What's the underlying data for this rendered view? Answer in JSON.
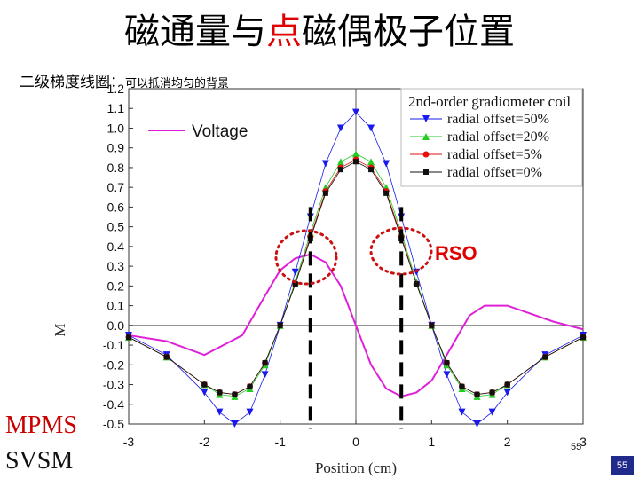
{
  "title_pre": "磁通量与",
  "title_highlight": "点",
  "title_post": "磁偶极子位置",
  "subtitle_main": "二级梯度线圈：",
  "subtitle_note": "可以抵消均匀的背景",
  "voltage_label": "Voltage",
  "rso_label": "RSO",
  "mpms_label": "MPMS",
  "svsm_label": "SVSM",
  "page_number": "55",
  "small_page_number": "55",
  "colors": {
    "voltage": "#e020d8",
    "offset50": "#1a1aee",
    "offset20": "#22cc22",
    "offset5": "#e01010",
    "offset0": "#111111",
    "highlight": "#e00000",
    "page_badge": "#1f2a8a"
  },
  "chart_data": {
    "type": "line",
    "xlabel": "Position (cm)",
    "ylabel": "M",
    "xlim": [
      -3,
      3
    ],
    "ylim": [
      -0.5,
      1.2
    ],
    "xticks": [
      -3,
      -2,
      -1,
      0,
      1,
      2,
      3
    ],
    "yticks": [
      -0.5,
      -0.4,
      -0.3,
      -0.2,
      -0.1,
      0.0,
      0.1,
      0.2,
      0.3,
      0.4,
      0.5,
      0.6,
      0.7,
      0.8,
      0.9,
      1.0,
      1.1,
      1.2
    ],
    "grid": false,
    "legend_title": "2nd-order gradiometer coil",
    "legend_position": "top-right",
    "x": [
      -3.0,
      -2.5,
      -2.0,
      -1.8,
      -1.6,
      -1.4,
      -1.2,
      -1.0,
      -0.8,
      -0.6,
      -0.4,
      -0.2,
      0.0,
      0.2,
      0.4,
      0.6,
      0.8,
      1.0,
      1.2,
      1.4,
      1.6,
      1.8,
      2.0,
      2.5,
      3.0
    ],
    "series": [
      {
        "name": "radial offset=50%",
        "marker": "triangle-down",
        "values": [
          -0.05,
          -0.15,
          -0.34,
          -0.44,
          -0.5,
          -0.44,
          -0.25,
          0.0,
          0.27,
          0.55,
          0.82,
          1.0,
          1.08,
          1.0,
          0.82,
          0.55,
          0.27,
          0.0,
          -0.25,
          -0.44,
          -0.5,
          -0.44,
          -0.34,
          -0.15,
          -0.05
        ]
      },
      {
        "name": "radial offset=20%",
        "marker": "triangle-up",
        "values": [
          -0.06,
          -0.16,
          -0.3,
          -0.35,
          -0.36,
          -0.32,
          -0.2,
          0.0,
          0.22,
          0.47,
          0.7,
          0.83,
          0.87,
          0.83,
          0.7,
          0.47,
          0.22,
          0.0,
          -0.2,
          -0.32,
          -0.36,
          -0.35,
          -0.3,
          -0.16,
          -0.06
        ]
      },
      {
        "name": "radial offset=5%",
        "marker": "circle",
        "values": [
          -0.06,
          -0.16,
          -0.3,
          -0.34,
          -0.35,
          -0.31,
          -0.19,
          0.0,
          0.21,
          0.45,
          0.68,
          0.8,
          0.84,
          0.8,
          0.68,
          0.45,
          0.21,
          0.0,
          -0.19,
          -0.31,
          -0.35,
          -0.34,
          -0.3,
          -0.16,
          -0.06
        ]
      },
      {
        "name": "radial offset=0%",
        "marker": "square",
        "values": [
          -0.06,
          -0.16,
          -0.3,
          -0.34,
          -0.35,
          -0.31,
          -0.19,
          0.0,
          0.21,
          0.44,
          0.67,
          0.79,
          0.83,
          0.79,
          0.67,
          0.44,
          0.21,
          0.0,
          -0.19,
          -0.31,
          -0.35,
          -0.34,
          -0.3,
          -0.16,
          -0.06
        ]
      },
      {
        "name": "Voltage",
        "marker": "none",
        "x": [
          -3.0,
          -2.5,
          -2.0,
          -1.5,
          -1.2,
          -1.0,
          -0.8,
          -0.6,
          -0.4,
          -0.2,
          0.0,
          0.2,
          0.4,
          0.6,
          0.8,
          1.0,
          1.2,
          1.5,
          1.7,
          2.0,
          2.3,
          2.6,
          3.0
        ],
        "values": [
          -0.05,
          -0.08,
          -0.15,
          -0.05,
          0.15,
          0.28,
          0.34,
          0.36,
          0.32,
          0.2,
          0.0,
          -0.2,
          -0.32,
          -0.36,
          -0.34,
          -0.28,
          -0.15,
          0.05,
          0.1,
          0.1,
          0.06,
          0.02,
          -0.02
        ]
      }
    ],
    "markers": {
      "dashed_lines_x": [
        -0.6,
        0.6
      ],
      "dashed_lines_y": [
        -0.4,
        0.6
      ]
    }
  }
}
